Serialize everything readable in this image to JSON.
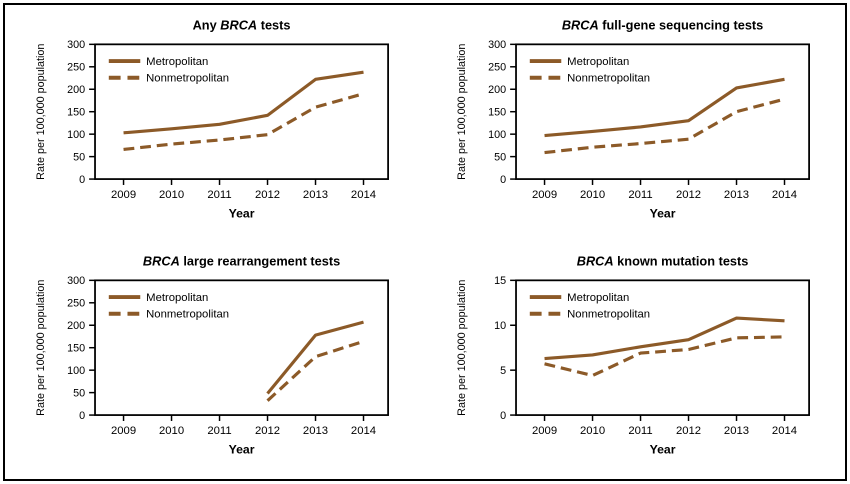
{
  "colors": {
    "line": "#8C5A28",
    "axis": "#000000",
    "text": "#000000",
    "background": "#FFFFFF",
    "border": "#000000"
  },
  "legend": {
    "metropolitan_label": "Metropolitan",
    "nonmetropolitan_label": "Nonmetropolitan"
  },
  "chart_data": [
    {
      "type": "line",
      "title_text": "Any BRCA tests",
      "title_segments": [
        {
          "text": "Any ",
          "italic": false
        },
        {
          "text": "BRCA",
          "italic": true
        },
        {
          "text": " tests",
          "italic": false
        }
      ],
      "xlabel": "Year",
      "ylabel": "Rate per 100,000 population",
      "x": [
        2009,
        2010,
        2011,
        2012,
        2013,
        2014
      ],
      "ylim": [
        0,
        300
      ],
      "ytick_step": 50,
      "grid": false,
      "legend_position": "top-left",
      "series": [
        {
          "name": "Metropolitan",
          "style": "solid",
          "values": [
            103,
            112,
            122,
            142,
            222,
            238
          ]
        },
        {
          "name": "Nonmetropolitan",
          "style": "dashed",
          "values": [
            66,
            78,
            87,
            99,
            160,
            190
          ]
        }
      ]
    },
    {
      "type": "line",
      "title_text": "BRCA full-gene sequencing tests",
      "title_segments": [
        {
          "text": "BRCA",
          "italic": true
        },
        {
          "text": " full-gene sequencing tests",
          "italic": false
        }
      ],
      "xlabel": "Year",
      "ylabel": "Rate per 100,000 population",
      "x": [
        2009,
        2010,
        2011,
        2012,
        2013,
        2014
      ],
      "ylim": [
        0,
        300
      ],
      "ytick_step": 50,
      "grid": false,
      "legend_position": "top-left",
      "series": [
        {
          "name": "Metropolitan",
          "style": "solid",
          "values": [
            97,
            106,
            116,
            130,
            203,
            222
          ]
        },
        {
          "name": "Nonmetropolitan",
          "style": "dashed",
          "values": [
            59,
            71,
            79,
            89,
            150,
            178
          ]
        }
      ]
    },
    {
      "type": "line",
      "title_text": "BRCA large rearrangement tests",
      "title_segments": [
        {
          "text": "BRCA",
          "italic": true
        },
        {
          "text": " large rearrangement tests",
          "italic": false
        }
      ],
      "xlabel": "Year",
      "ylabel": "Rate per 100,000 population",
      "x": [
        2009,
        2010,
        2011,
        2012,
        2013,
        2014
      ],
      "ylim": [
        0,
        300
      ],
      "ytick_step": 50,
      "grid": false,
      "legend_position": "top-left",
      "series": [
        {
          "name": "Metropolitan",
          "style": "solid",
          "values": [
            null,
            null,
            null,
            48,
            178,
            207
          ]
        },
        {
          "name": "Nonmetropolitan",
          "style": "dashed",
          "values": [
            null,
            null,
            null,
            32,
            130,
            164
          ]
        }
      ]
    },
    {
      "type": "line",
      "title_text": "BRCA known mutation tests",
      "title_segments": [
        {
          "text": "BRCA",
          "italic": true
        },
        {
          "text": " known mutation tests",
          "italic": false
        }
      ],
      "xlabel": "Year",
      "ylabel": "Rate per 100,000 population",
      "x": [
        2009,
        2010,
        2011,
        2012,
        2013,
        2014
      ],
      "ylim": [
        0,
        15
      ],
      "ytick_step": 5,
      "grid": false,
      "legend_position": "top-left",
      "series": [
        {
          "name": "Metropolitan",
          "style": "solid",
          "values": [
            6.3,
            6.7,
            7.6,
            8.4,
            10.8,
            10.5
          ]
        },
        {
          "name": "Nonmetropolitan",
          "style": "dashed",
          "values": [
            5.7,
            4.4,
            6.9,
            7.3,
            8.6,
            8.7
          ]
        }
      ]
    }
  ]
}
